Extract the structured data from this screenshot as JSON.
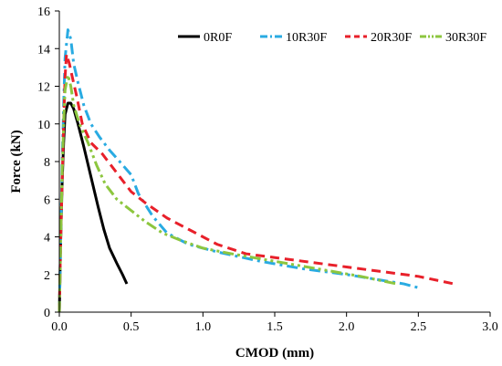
{
  "chart_data": {
    "type": "line",
    "title": "",
    "xlabel": "CMOD (mm)",
    "ylabel": "Force (kN)",
    "xlim": [
      0,
      3.0
    ],
    "ylim": [
      0,
      16
    ],
    "xticks": [
      "0.0",
      "0.5",
      "1.0",
      "1.5",
      "2.0",
      "2.5",
      "3.0"
    ],
    "yticks": [
      "0",
      "2",
      "4",
      "6",
      "8",
      "10",
      "12",
      "14",
      "16"
    ],
    "grid": false,
    "legend_position": "top-right",
    "series": [
      {
        "name": "0R0F",
        "color": "#000000",
        "style": "solid",
        "points": [
          [
            0,
            0
          ],
          [
            0.01,
            4
          ],
          [
            0.02,
            7
          ],
          [
            0.03,
            9
          ],
          [
            0.04,
            10.5
          ],
          [
            0.06,
            11.1
          ],
          [
            0.08,
            11.1
          ],
          [
            0.1,
            10.8
          ],
          [
            0.13,
            10.0
          ],
          [
            0.17,
            8.8
          ],
          [
            0.22,
            7.2
          ],
          [
            0.27,
            5.6
          ],
          [
            0.31,
            4.4
          ],
          [
            0.35,
            3.4
          ],
          [
            0.4,
            2.6
          ],
          [
            0.44,
            2.0
          ],
          [
            0.47,
            1.5
          ]
        ]
      },
      {
        "name": "10R30F",
        "color": "#29abe2",
        "style": "dashdot",
        "points": [
          [
            0,
            0
          ],
          [
            0.01,
            4
          ],
          [
            0.02,
            8
          ],
          [
            0.03,
            11
          ],
          [
            0.04,
            13.5
          ],
          [
            0.06,
            15.0
          ],
          [
            0.08,
            14.5
          ],
          [
            0.1,
            13.2
          ],
          [
            0.13,
            12.2
          ],
          [
            0.17,
            11.0
          ],
          [
            0.22,
            10.0
          ],
          [
            0.28,
            9.3
          ],
          [
            0.35,
            8.6
          ],
          [
            0.42,
            8.0
          ],
          [
            0.5,
            7.3
          ],
          [
            0.55,
            6.3
          ],
          [
            0.65,
            5.1
          ],
          [
            0.75,
            4.2
          ],
          [
            0.9,
            3.6
          ],
          [
            1.1,
            3.2
          ],
          [
            1.4,
            2.7
          ],
          [
            1.7,
            2.3
          ],
          [
            2.0,
            2.0
          ],
          [
            2.2,
            1.75
          ],
          [
            2.4,
            1.5
          ],
          [
            2.5,
            1.3
          ]
        ]
      },
      {
        "name": "20R30F",
        "color": "#e8202a",
        "style": "dashed",
        "points": [
          [
            0,
            0
          ],
          [
            0.01,
            4
          ],
          [
            0.02,
            7
          ],
          [
            0.03,
            10
          ],
          [
            0.04,
            12.5
          ],
          [
            0.05,
            13.7
          ],
          [
            0.07,
            13.2
          ],
          [
            0.09,
            12.5
          ],
          [
            0.12,
            11.5
          ],
          [
            0.16,
            10.0
          ],
          [
            0.22,
            9.0
          ],
          [
            0.3,
            8.4
          ],
          [
            0.4,
            7.4
          ],
          [
            0.5,
            6.4
          ],
          [
            0.6,
            5.8
          ],
          [
            0.75,
            5.0
          ],
          [
            0.9,
            4.4
          ],
          [
            1.1,
            3.6
          ],
          [
            1.3,
            3.1
          ],
          [
            1.6,
            2.8
          ],
          [
            1.9,
            2.5
          ],
          [
            2.2,
            2.2
          ],
          [
            2.5,
            1.9
          ],
          [
            2.75,
            1.5
          ]
        ]
      },
      {
        "name": "30R30F",
        "color": "#8dc63f",
        "style": "dashdotdot",
        "points": [
          [
            0,
            0
          ],
          [
            0.01,
            4
          ],
          [
            0.02,
            7.5
          ],
          [
            0.03,
            10
          ],
          [
            0.04,
            11.8
          ],
          [
            0.06,
            12.6
          ],
          [
            0.08,
            12.0
          ],
          [
            0.1,
            11.0
          ],
          [
            0.14,
            10.0
          ],
          [
            0.2,
            9.0
          ],
          [
            0.26,
            7.8
          ],
          [
            0.32,
            6.8
          ],
          [
            0.4,
            6.0
          ],
          [
            0.5,
            5.4
          ],
          [
            0.6,
            4.8
          ],
          [
            0.72,
            4.2
          ],
          [
            0.85,
            3.8
          ],
          [
            1.0,
            3.4
          ],
          [
            1.2,
            3.1
          ],
          [
            1.5,
            2.7
          ],
          [
            1.8,
            2.3
          ],
          [
            2.1,
            1.9
          ],
          [
            2.35,
            1.5
          ]
        ]
      }
    ]
  }
}
